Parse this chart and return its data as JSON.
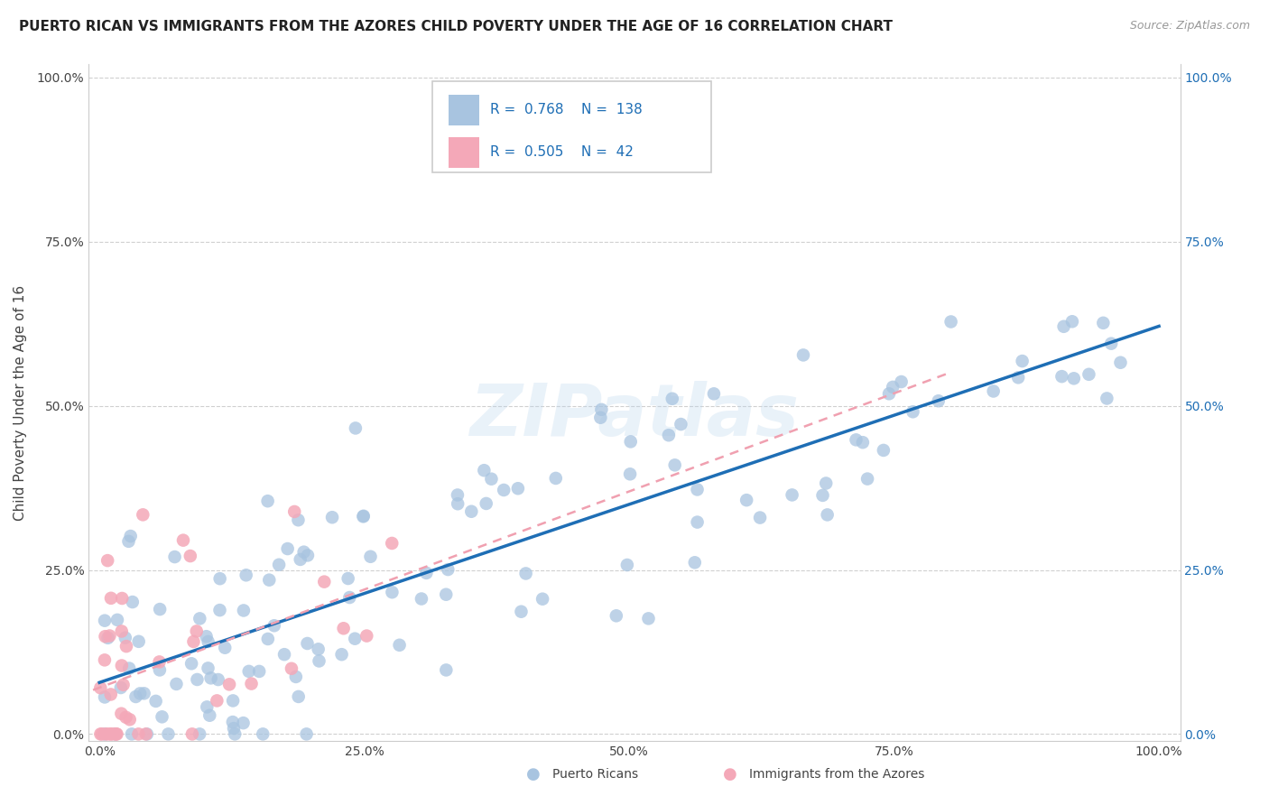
{
  "title": "PUERTO RICAN VS IMMIGRANTS FROM THE AZORES CHILD POVERTY UNDER THE AGE OF 16 CORRELATION CHART",
  "source": "Source: ZipAtlas.com",
  "ylabel": "Child Poverty Under the Age of 16",
  "x_tick_labels": [
    "0.0%",
    "25.0%",
    "50.0%",
    "75.0%",
    "100.0%"
  ],
  "y_tick_labels_left": [
    "0.0%",
    "25.0%",
    "50.0%",
    "75.0%",
    "100.0%"
  ],
  "y_tick_labels_right": [
    "0.0%",
    "25.0%",
    "50.0%",
    "75.0%",
    "100.0%"
  ],
  "x_ticks": [
    0,
    0.25,
    0.5,
    0.75,
    1.0
  ],
  "y_ticks": [
    0,
    0.25,
    0.5,
    0.75,
    1.0
  ],
  "blue_R": 0.768,
  "blue_N": 138,
  "pink_R": 0.505,
  "pink_N": 42,
  "blue_color": "#a8c4e0",
  "pink_color": "#f4a8b8",
  "blue_line_color": "#1e6eb5",
  "pink_line_color": "#f0a0b0",
  "legend_label_blue": "Puerto Ricans",
  "legend_label_pink": "Immigrants from the Azores",
  "watermark_text": "ZIPatlas",
  "background_color": "#ffffff",
  "grid_color": "#d0d0d0",
  "title_fontsize": 11,
  "source_fontsize": 9,
  "r_n_color": "#1e6eb5",
  "blue_seed": 12345,
  "pink_seed": 99999
}
